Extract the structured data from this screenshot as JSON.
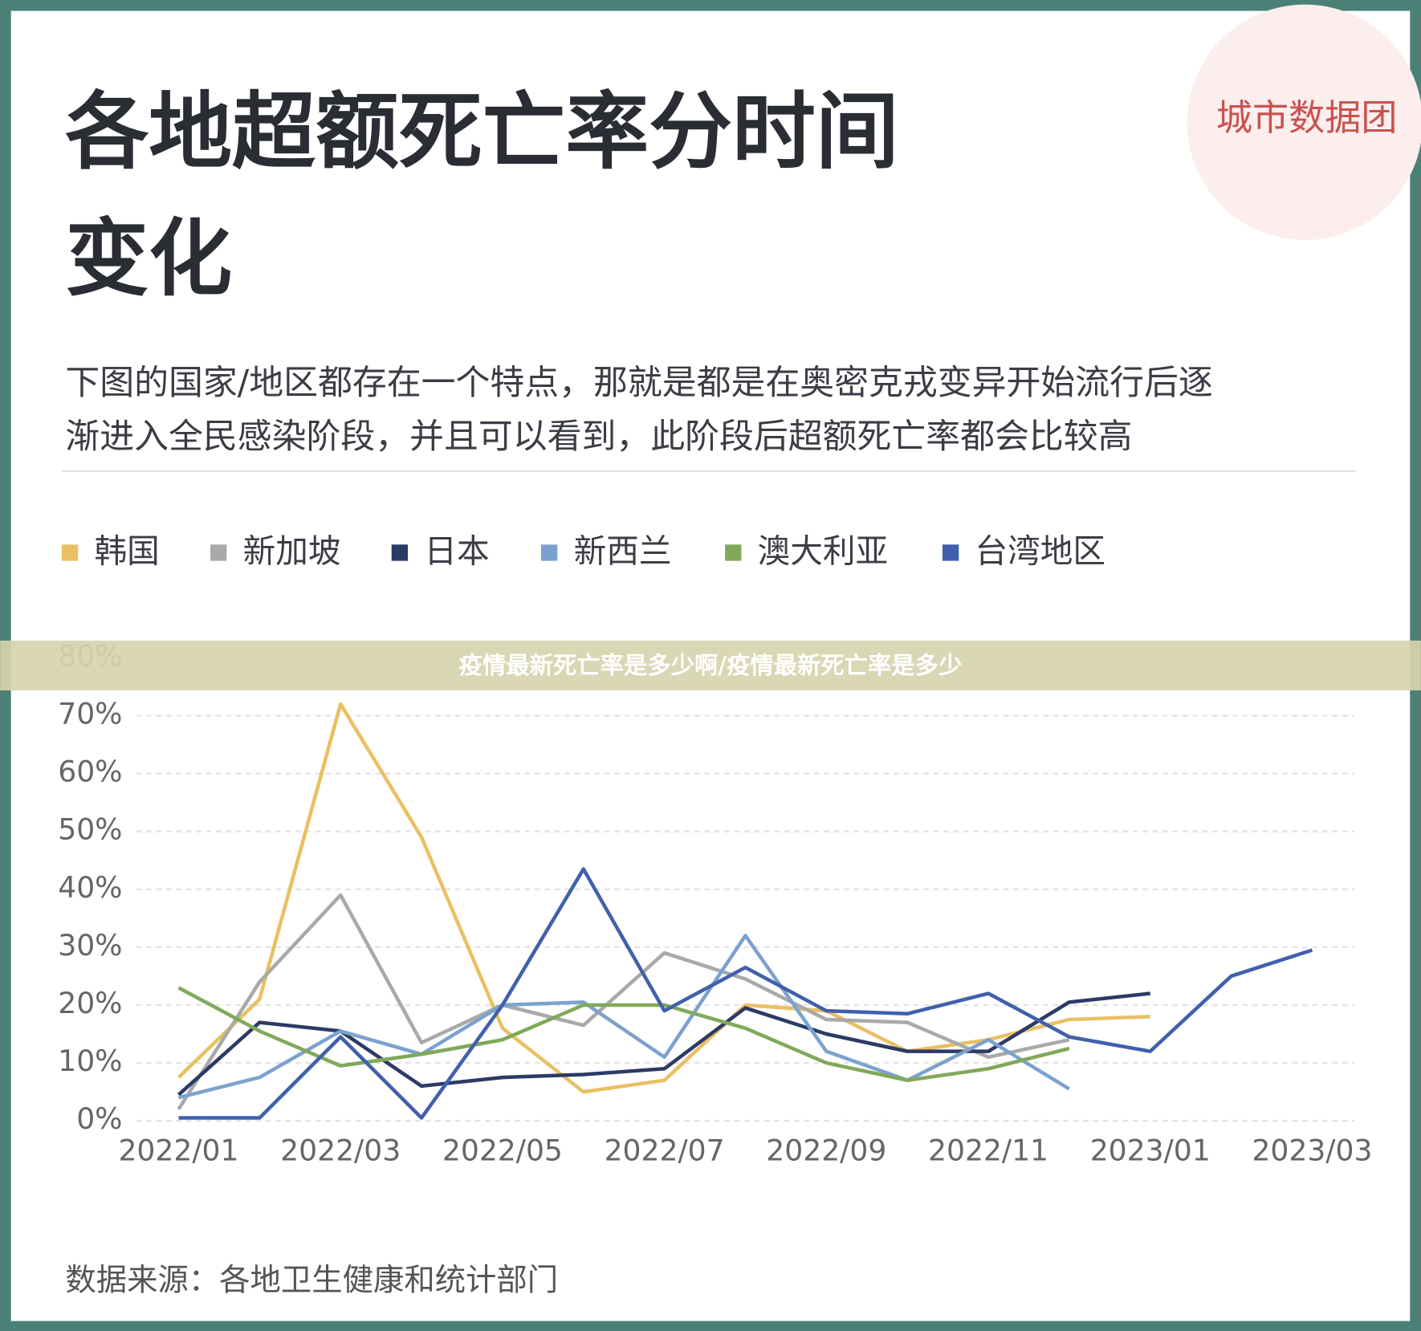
{
  "chart_data": {
    "type": "line",
    "title_lines": [
      "各地超额死亡率分时间",
      "变化"
    ],
    "subtitle_lines": [
      "下图的国家/地区都存在一个特点，那就是都是在奥密克戎变异开始流行后逐",
      "渐进入全民感染阶段，并且可以看到，此阶段后超额死亡率都会比较高"
    ],
    "watermark": "城市数据团",
    "banner": "疫情最新死亡率是多少啊/疫情最新死亡率是多少",
    "source": "数据来源：各地卫生健康和统计部门",
    "categories": [
      "2022/01",
      null,
      "2022/03",
      null,
      "2022/05",
      null,
      "2022/07",
      null,
      "2022/09",
      null,
      "2022/11",
      null,
      "2023/01",
      null,
      "2023/03"
    ],
    "ylim": [
      0,
      80
    ],
    "yticks": [
      {
        "value": 0,
        "label": "0%"
      },
      {
        "value": 10,
        "label": "10%"
      },
      {
        "value": 20,
        "label": "20%"
      },
      {
        "value": 30,
        "label": "30%"
      },
      {
        "value": 40,
        "label": "40%"
      },
      {
        "value": 50,
        "label": "50%"
      },
      {
        "value": 60,
        "label": "60%"
      },
      {
        "value": 70,
        "label": "70%"
      },
      {
        "value": 80,
        "label": "80%"
      }
    ],
    "grid": true,
    "legend": "top",
    "series": [
      {
        "name": "韩国",
        "color": "#e9c062",
        "values": [
          7.5,
          21,
          72,
          49,
          16,
          5,
          7,
          20,
          19,
          12,
          14,
          17.5,
          18,
          null,
          null
        ]
      },
      {
        "name": "新加坡",
        "color": "#a9a9a9",
        "values": [
          2,
          24,
          39,
          13.5,
          20,
          16.5,
          29,
          24.5,
          17.5,
          17,
          11,
          14,
          null,
          null,
          null
        ]
      },
      {
        "name": "日本",
        "color": "#2c3a66",
        "values": [
          4.5,
          17,
          15.5,
          6,
          7.5,
          8,
          9,
          19.5,
          15,
          12,
          12,
          20.5,
          22,
          null,
          null
        ]
      },
      {
        "name": "新西兰",
        "color": "#7ba2cf",
        "values": [
          4,
          7.5,
          15.5,
          11.5,
          20,
          20.5,
          11,
          32,
          12,
          7,
          14,
          5.5,
          null,
          null,
          null
        ]
      },
      {
        "name": "澳大利亚",
        "color": "#80a95a",
        "values": [
          23,
          15.5,
          9.5,
          11.5,
          14,
          20,
          20,
          16,
          10,
          7,
          9,
          12.5,
          null,
          null,
          null
        ]
      },
      {
        "name": "台湾地区",
        "color": "#4160ac",
        "values": [
          0.5,
          0.5,
          14.5,
          0.5,
          20,
          43.5,
          19,
          26.5,
          19,
          18.5,
          22,
          14.5,
          12,
          25,
          29.5
        ]
      }
    ]
  }
}
